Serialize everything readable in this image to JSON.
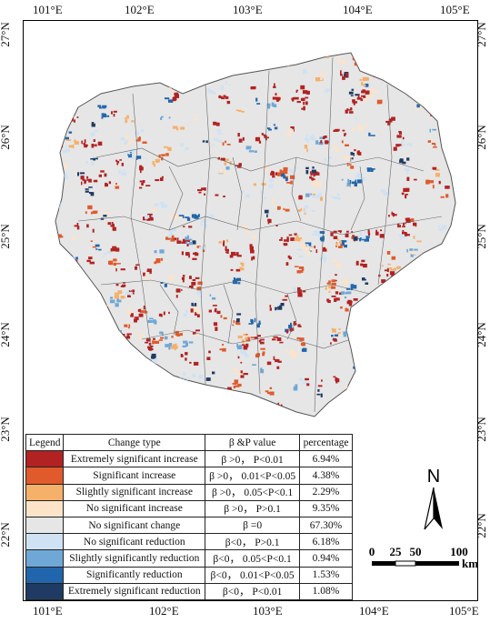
{
  "axes": {
    "top_labels": [
      "101°E",
      "102°E",
      "103°E",
      "104°E",
      "105°E"
    ],
    "bottom_labels": [
      "101°E",
      "102°E",
      "103°E",
      "104°E",
      "105°E"
    ],
    "left_labels": [
      "27°N",
      "26°N",
      "25°N",
      "24°N",
      "23°N",
      "22°N"
    ],
    "right_labels": [
      "27°N",
      "26°N",
      "25°N",
      "24°N",
      "23°N",
      "22°N"
    ]
  },
  "legend": {
    "headers": [
      "Legend",
      "Change type",
      "β &P value",
      "percentage"
    ],
    "rows": [
      {
        "color": "#b22222",
        "type": "Extremely significant increase",
        "value": "β >0， P<0.01",
        "pct": "6.94%"
      },
      {
        "color": "#e05a2b",
        "type": "Significant increase",
        "value": "β >0， 0.01<P<0.05",
        "pct": "4.38%"
      },
      {
        "color": "#f5b06a",
        "type": "Slightly significant increase",
        "value": "β >0， 0.05<P<0.1",
        "pct": "2.29%"
      },
      {
        "color": "#fde3c8",
        "type": "No significant increase",
        "value": "β >0， P>0.1",
        "pct": "9.35%"
      },
      {
        "color": "#e6e6e6",
        "type": "No significant change",
        "value": "β =0",
        "pct": "67.30%"
      },
      {
        "color": "#cfe2f3",
        "type": "No significant reduction",
        "value": "β<0， P>0.1",
        "pct": "6.18%"
      },
      {
        "color": "#6fa8d6",
        "type": "Slightly significantly reduction",
        "value": "β<0， 0.05<P<0.1",
        "pct": "0.94%"
      },
      {
        "color": "#2166ac",
        "type": "Significantly reduction",
        "value": "β<0， 0.01<P<0.05",
        "pct": "1.53%"
      },
      {
        "color": "#1f3b63",
        "type": "Extremely significant reduction",
        "value": "β<0， P<0.01",
        "pct": "1.08%"
      }
    ]
  },
  "north_arrow": {
    "label": "N"
  },
  "scale_bar": {
    "ticks": [
      "0",
      "25",
      "50",
      "100"
    ],
    "unit": "km"
  }
}
